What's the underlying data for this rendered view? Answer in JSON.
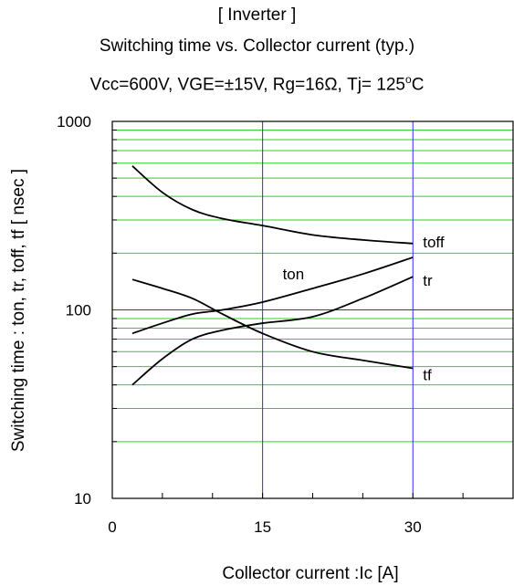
{
  "chart_data": {
    "type": "line",
    "title": "[ Inverter ]",
    "subtitle": "Switching time  vs.  Collector current  (typ.)",
    "conditions": "Vcc=600V, VGE=±15V, Rg=16Ω, Tj= 125°C",
    "conditions_display": {
      "prefix": "Vcc=600V, VGE=±15V, Rg=16",
      "omega": "Ω",
      "middle": ", Tj= 125",
      "degree": "o",
      "suffix": "C"
    },
    "xlabel": "Collector   current :Ic [A]",
    "ylabel": "Switching time  : ton, tr, toff, tf  [ nsec ]",
    "xlim": [
      0,
      40
    ],
    "ylim": [
      10,
      1000
    ],
    "yscale": "log",
    "x_ticks": [
      0,
      15,
      30
    ],
    "x_tick_labels": [
      "0",
      "15",
      "30"
    ],
    "y_tick_labels": [
      "10",
      "100",
      "1000"
    ],
    "y_tick_values": [
      10,
      100,
      1000
    ],
    "grid": "on",
    "series": [
      {
        "name": "toff",
        "x": [
          2,
          5,
          8,
          11,
          15,
          20,
          25,
          30
        ],
        "y": [
          580,
          420,
          340,
          305,
          280,
          250,
          235,
          225
        ]
      },
      {
        "name": "ton",
        "x": [
          2,
          5,
          8,
          11,
          15,
          20,
          25,
          30
        ],
        "y": [
          75,
          85,
          95,
          100,
          110,
          130,
          155,
          190
        ]
      },
      {
        "name": "tr",
        "x": [
          2,
          5,
          8,
          11,
          15,
          20,
          25,
          30
        ],
        "y": [
          40,
          55,
          70,
          78,
          85,
          92,
          115,
          150
        ]
      },
      {
        "name": "tf",
        "x": [
          2,
          5,
          8,
          11,
          15,
          20,
          25,
          30
        ],
        "y": [
          145,
          130,
          115,
          95,
          75,
          60,
          54,
          49
        ]
      }
    ],
    "colors": {
      "major_grid": "#2b2bff",
      "minor_grid": "#33cc33",
      "curves": "#000000",
      "frame": "#000000"
    }
  }
}
